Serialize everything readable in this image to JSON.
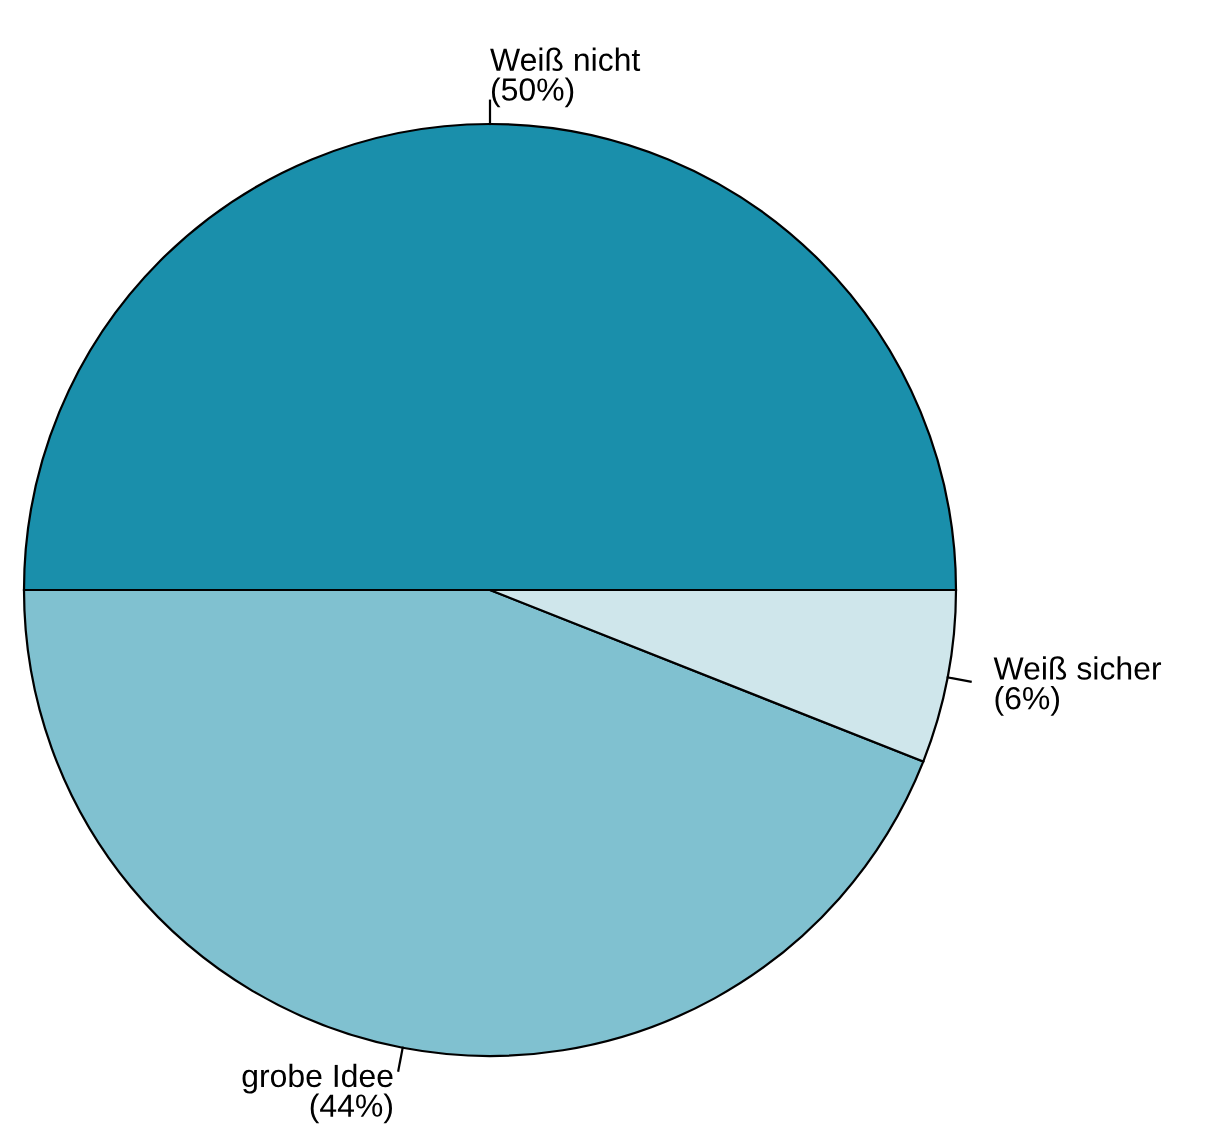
{
  "chart_data": {
    "type": "pie",
    "categories": [
      "Weiß nicht",
      "grobe Idee",
      "Weiß sicher"
    ],
    "values": [
      50,
      44,
      6
    ],
    "value_labels": [
      "(50%)",
      "(44%)",
      "(6%)"
    ],
    "colors": [
      "#1a8fab",
      "#80c1d0",
      "#cfe6eb"
    ]
  }
}
